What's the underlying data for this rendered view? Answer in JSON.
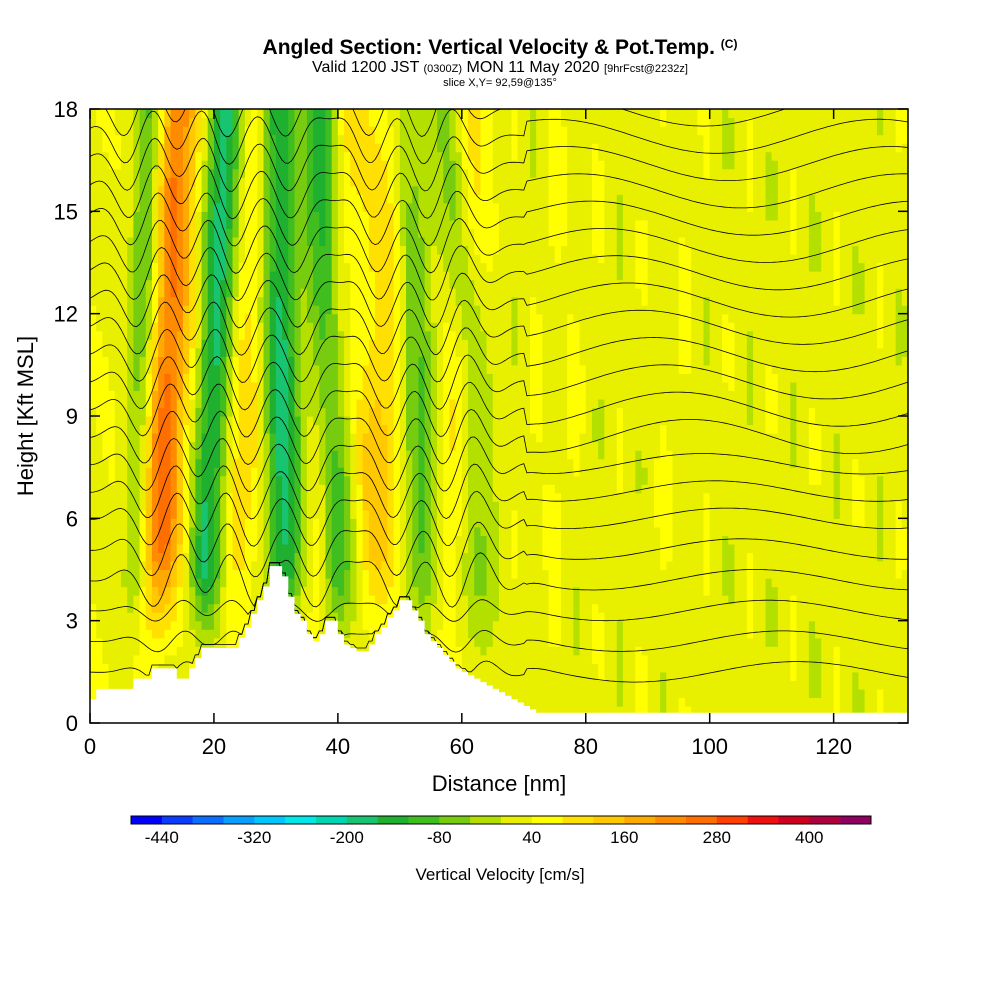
{
  "header": {
    "title": "Angled Section: Vertical Velocity & Pot.Temp.",
    "title_tag": "(C)",
    "valid_a": "Valid 1200 JST",
    "valid_b": "(0300Z)",
    "valid_c": "MON 11 May 2020",
    "valid_d": "[9hrFcst@2232z]",
    "slice": "slice X,Y= 92,59@135°"
  },
  "chart_data": {
    "type": "heatmap",
    "title": "Angled Section: Vertical Velocity & Pot.Temp.",
    "xlabel": "Distance [nm]",
    "ylabel": "Height [Kft MSL]",
    "xlim": [
      0,
      132
    ],
    "ylim": [
      0,
      18
    ],
    "x_ticks": [
      "0",
      "20",
      "40",
      "60",
      "80",
      "100",
      "120"
    ],
    "x_tick_values": [
      0,
      20,
      40,
      60,
      80,
      100,
      120
    ],
    "y_ticks": [
      "0",
      "3",
      "6",
      "9",
      "12",
      "15",
      "18"
    ],
    "y_tick_values": [
      0,
      3,
      6,
      9,
      12,
      15,
      18
    ],
    "colorbar": {
      "label": "Vertical Velocity [cm/s]",
      "min": -480,
      "max": 480,
      "step": 40,
      "tick_labels": [
        "-440",
        "-320",
        "-200",
        "-80",
        "40",
        "160",
        "280",
        "400"
      ],
      "tick_values": [
        -440,
        -320,
        -200,
        -80,
        40,
        160,
        280,
        400
      ],
      "colors": [
        "#0000ff",
        "#0a3cff",
        "#0a6eff",
        "#08a0ff",
        "#00c8ff",
        "#00e8e8",
        "#00d6b0",
        "#18c470",
        "#20b030",
        "#40be20",
        "#78cc10",
        "#b4e000",
        "#e8f000",
        "#ffff00",
        "#ffe000",
        "#ffc800",
        "#ffaa00",
        "#ff8c00",
        "#ff6e00",
        "#ff4000",
        "#f01010",
        "#d00020",
        "#b00040",
        "#900060"
      ]
    },
    "updraft_bands": [
      {
        "x_bottom": 9,
        "x_top": 14,
        "w_max": 300,
        "width": 4
      },
      {
        "x_bottom": 21,
        "x_top": 27,
        "w_max": 130,
        "width": 4
      },
      {
        "x_bottom": 35,
        "x_top": 42,
        "w_max": 120,
        "width": 3
      },
      {
        "x_bottom": 44,
        "x_top": 50,
        "w_max": 140,
        "width": 4
      },
      {
        "x_bottom": 56,
        "x_top": 62,
        "w_max": 110,
        "width": 3
      },
      {
        "x_bottom": 72,
        "x_top": 78,
        "w_max": 50,
        "width": 4
      },
      {
        "x_bottom": 93,
        "x_top": 96,
        "w_max": 40,
        "width": 4
      }
    ],
    "downdraft_bands": [
      {
        "x_bottom": 7,
        "x_top": 10,
        "w_min": -160,
        "width": 2.5
      },
      {
        "x_bottom": 18,
        "x_top": 22,
        "w_min": -200,
        "width": 3
      },
      {
        "x_bottom": 32,
        "x_top": 30,
        "w_min": -180,
        "width": 3
      },
      {
        "x_bottom": 41,
        "x_top": 37,
        "w_min": -150,
        "width": 3
      },
      {
        "x_bottom": 55,
        "x_top": 51,
        "w_min": -100,
        "width": 3
      },
      {
        "x_bottom": 65,
        "x_top": 58,
        "w_min": -60,
        "width": 3
      }
    ],
    "terrain": {
      "x": [
        0,
        1,
        2,
        3,
        4,
        5,
        6,
        7,
        8,
        9,
        10,
        11,
        12,
        13,
        14,
        15,
        16,
        17,
        18,
        19,
        20,
        21,
        22,
        23,
        24,
        25,
        26,
        27,
        28,
        29,
        30,
        31,
        32,
        33,
        34,
        35,
        36,
        37,
        38,
        39,
        40,
        41,
        42,
        43,
        44,
        45,
        46,
        47,
        48,
        49,
        50,
        51,
        52,
        53,
        54,
        55,
        56,
        57,
        58,
        59,
        60,
        61,
        62,
        63,
        64,
        65,
        66,
        67,
        68,
        69,
        70,
        71,
        72
      ],
      "height": [
        0.7,
        1.0,
        1.0,
        1.0,
        1.0,
        1.0,
        1.0,
        1.3,
        1.3,
        1.3,
        1.6,
        1.6,
        1.6,
        1.6,
        1.3,
        1.3,
        1.6,
        1.9,
        2.2,
        2.2,
        2.2,
        2.2,
        2.2,
        2.2,
        2.5,
        2.8,
        3.2,
        3.6,
        4.0,
        4.6,
        4.6,
        4.3,
        3.7,
        3.2,
        3.0,
        2.6,
        2.4,
        2.6,
        3.0,
        3.0,
        2.6,
        2.3,
        2.2,
        2.1,
        2.1,
        2.3,
        2.6,
        2.8,
        3.1,
        3.3,
        3.6,
        3.6,
        3.3,
        3.0,
        2.6,
        2.4,
        2.2,
        2.0,
        1.8,
        1.6,
        1.5,
        1.4,
        1.3,
        1.2,
        1.1,
        1.0,
        0.9,
        0.8,
        0.7,
        0.6,
        0.5,
        0.4,
        0.3
      ]
    },
    "isentropes": {
      "levels_kft_at_60nm": [
        1.5,
        2.4,
        3.3,
        4.2,
        5.1,
        6.0,
        6.8,
        7.6,
        8.4,
        9.2,
        10.0,
        10.8,
        11.6,
        12.4,
        13.2,
        14.0,
        14.8,
        15.6,
        16.4,
        17.2,
        18.0
      ],
      "wave_x": [
        12,
        24,
        38,
        47,
        60
      ],
      "wave_amplitude_kft": 0.9
    }
  }
}
